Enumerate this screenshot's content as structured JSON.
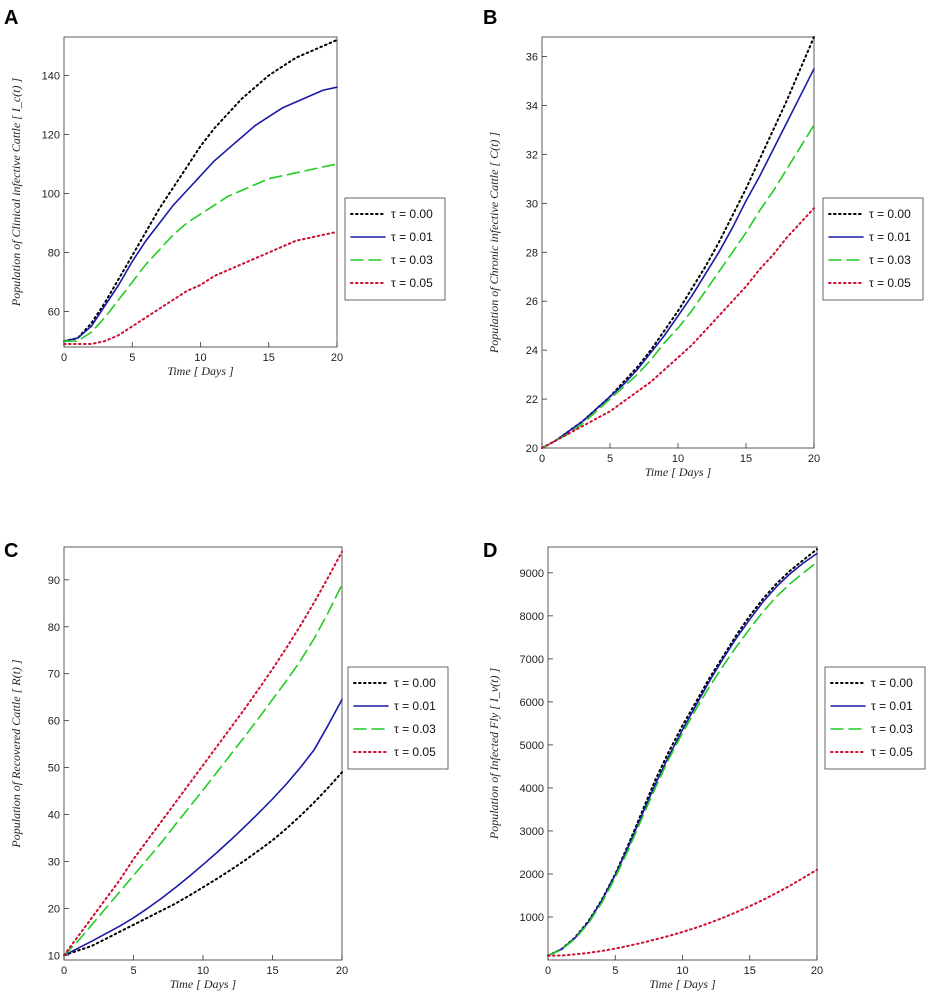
{
  "figure": {
    "width": 935,
    "height": 994
  },
  "series_styles": [
    {
      "name": "τ = 0.00",
      "color": "#000000",
      "dash": "dotted"
    },
    {
      "name": "τ = 0.01",
      "color": "#1a1aa6",
      "dash": "solid"
    },
    {
      "name": "τ = 0.03",
      "color": "#22cc22",
      "dash": "dashed"
    },
    {
      "name": "τ = 0.05",
      "color": "#cc1133",
      "dash": "dotted"
    }
  ],
  "chart_data": [
    {
      "panel": "A",
      "type": "line",
      "xlabel": "Time [ Days ]",
      "ylabel": "Population of Clinical infective Cattle [ I_c(t) ]",
      "xlim": [
        0,
        20
      ],
      "ylim": [
        48,
        153
      ],
      "xticks": [
        0,
        5,
        10,
        15,
        20
      ],
      "yticks": [
        60,
        80,
        100,
        120,
        140
      ],
      "x": [
        0,
        1,
        2,
        3,
        4,
        5,
        6,
        7,
        8,
        9,
        10,
        11,
        12,
        13,
        14,
        15,
        16,
        17,
        18,
        19,
        20
      ],
      "series": [
        {
          "name": "τ = 0.00",
          "values": [
            50,
            51,
            56,
            63,
            71,
            79,
            87,
            95,
            102,
            109,
            116,
            122,
            127,
            132,
            136,
            140,
            143,
            146,
            148,
            150,
            152
          ]
        },
        {
          "name": "τ = 0.01",
          "values": [
            50,
            51,
            55,
            62,
            69,
            77,
            84,
            90,
            96,
            101,
            106,
            111,
            115,
            119,
            123,
            126,
            129,
            131,
            133,
            135,
            136
          ]
        },
        {
          "name": "τ = 0.03",
          "values": [
            50,
            50,
            53,
            58,
            64,
            70,
            76,
            81,
            86,
            90,
            93,
            96,
            99,
            101,
            103,
            105,
            106,
            107,
            108,
            109,
            110
          ]
        },
        {
          "name": "τ = 0.05",
          "values": [
            49,
            49,
            49,
            50,
            52,
            55,
            58,
            61,
            64,
            67,
            69,
            72,
            74,
            76,
            78,
            80,
            82,
            84,
            85,
            86,
            87
          ]
        }
      ]
    },
    {
      "panel": "B",
      "type": "line",
      "xlabel": "Time [ Days ]",
      "ylabel": "Population of Chronic infective Cattle [ C(t) ]",
      "xlim": [
        0,
        20
      ],
      "ylim": [
        20,
        36.8
      ],
      "xticks": [
        0,
        5,
        10,
        15,
        20
      ],
      "yticks": [
        20,
        22,
        24,
        26,
        28,
        30,
        32,
        34,
        36
      ],
      "x": [
        0,
        1,
        2,
        3,
        4,
        5,
        6,
        7,
        8,
        9,
        10,
        11,
        12,
        13,
        14,
        15,
        16,
        17,
        18,
        19,
        20
      ],
      "series": [
        {
          "name": "τ = 0.00",
          "values": [
            20,
            20.3,
            20.7,
            21.1,
            21.6,
            22.1,
            22.7,
            23.3,
            24,
            24.8,
            25.6,
            26.5,
            27.4,
            28.4,
            29.5,
            30.6,
            31.8,
            33,
            34.2,
            35.5,
            36.8
          ]
        },
        {
          "name": "τ = 0.01",
          "values": [
            20,
            20.3,
            20.7,
            21.1,
            21.6,
            22.1,
            22.6,
            23.2,
            23.9,
            24.6,
            25.4,
            26.2,
            27.1,
            28,
            29,
            30.1,
            31.1,
            32.2,
            33.3,
            34.4,
            35.5
          ]
        },
        {
          "name": "τ = 0.03",
          "values": [
            20,
            20.3,
            20.6,
            21,
            21.5,
            22,
            22.5,
            23,
            23.6,
            24.3,
            24.9,
            25.6,
            26.4,
            27.2,
            28,
            28.8,
            29.7,
            30.5,
            31.4,
            32.3,
            33.2
          ]
        },
        {
          "name": "τ = 0.05",
          "values": [
            20,
            20.3,
            20.6,
            20.9,
            21.2,
            21.5,
            21.9,
            22.3,
            22.7,
            23.2,
            23.7,
            24.2,
            24.8,
            25.4,
            26,
            26.6,
            27.3,
            27.9,
            28.6,
            29.2,
            29.8
          ]
        }
      ]
    },
    {
      "panel": "C",
      "type": "line",
      "xlabel": "Time [ Days ]",
      "ylabel": "Population of Recovered Cattle [ R(t) ]",
      "xlim": [
        0,
        20
      ],
      "ylim": [
        9,
        97
      ],
      "xticks": [
        0,
        5,
        10,
        15,
        20
      ],
      "yticks": [
        10,
        20,
        30,
        40,
        50,
        60,
        70,
        80,
        90
      ],
      "x": [
        0,
        1,
        2,
        3,
        4,
        5,
        6,
        7,
        8,
        9,
        10,
        11,
        12,
        13,
        14,
        15,
        16,
        17,
        18,
        19,
        20
      ],
      "series": [
        {
          "name": "τ = 0.00",
          "values": [
            10,
            11,
            12,
            13.5,
            15,
            16.5,
            18,
            19.5,
            21,
            22.7,
            24.5,
            26.3,
            28.2,
            30.2,
            32.3,
            34.5,
            37,
            39.7,
            42.6,
            45.7,
            49
          ]
        },
        {
          "name": "τ = 0.01",
          "values": [
            10,
            11.5,
            13,
            14.6,
            16.2,
            18,
            20,
            22.1,
            24.4,
            26.8,
            29.3,
            31.9,
            34.6,
            37.4,
            40.3,
            43.3,
            46.5,
            50,
            53.8,
            59,
            64.5
          ]
        },
        {
          "name": "τ = 0.03",
          "values": [
            10,
            13,
            16.5,
            20,
            23.5,
            27,
            30.5,
            34,
            37.8,
            41.5,
            45.2,
            49,
            52.8,
            56.6,
            60.5,
            64.5,
            68.5,
            72.7,
            77.5,
            83,
            89
          ]
        },
        {
          "name": "τ = 0.05",
          "values": [
            10,
            14,
            18,
            22,
            26,
            30.5,
            34.5,
            38.5,
            42.5,
            46.5,
            50.5,
            54.5,
            58.5,
            62.5,
            66.7,
            71,
            75.5,
            80.2,
            85.2,
            90.5,
            96
          ]
        }
      ]
    },
    {
      "panel": "D",
      "type": "line",
      "xlabel": "Time [ Days ]",
      "ylabel": "Population of Infected Fly [ I_v(t) ]",
      "xlim": [
        0,
        20
      ],
      "ylim": [
        0,
        9600
      ],
      "xticks": [
        0,
        5,
        10,
        15,
        20
      ],
      "yticks": [
        1000,
        2000,
        3000,
        4000,
        5000,
        6000,
        7000,
        8000,
        9000
      ],
      "x": [
        0,
        1,
        2,
        3,
        4,
        5,
        6,
        7,
        8,
        9,
        10,
        11,
        12,
        13,
        14,
        15,
        16,
        17,
        18,
        19,
        20
      ],
      "series": [
        {
          "name": "τ = 0.00",
          "values": [
            100,
            250,
            520,
            900,
            1400,
            2000,
            2700,
            3450,
            4200,
            4850,
            5450,
            6000,
            6550,
            7050,
            7550,
            8000,
            8400,
            8750,
            9050,
            9300,
            9550
          ]
        },
        {
          "name": "τ = 0.01",
          "values": [
            100,
            250,
            510,
            880,
            1380,
            1980,
            2650,
            3380,
            4100,
            4750,
            5350,
            5920,
            6480,
            7000,
            7480,
            7920,
            8330,
            8680,
            8980,
            9230,
            9450
          ]
        },
        {
          "name": "τ = 0.03",
          "values": [
            100,
            240,
            490,
            850,
            1330,
            1920,
            2580,
            3300,
            4020,
            4680,
            5280,
            5830,
            6350,
            6830,
            7280,
            7700,
            8100,
            8450,
            8750,
            9000,
            9250
          ]
        },
        {
          "name": "τ = 0.05",
          "values": [
            100,
            105,
            130,
            165,
            210,
            265,
            330,
            400,
            480,
            560,
            650,
            750,
            860,
            980,
            1110,
            1250,
            1400,
            1560,
            1730,
            1910,
            2100
          ]
        }
      ]
    }
  ]
}
